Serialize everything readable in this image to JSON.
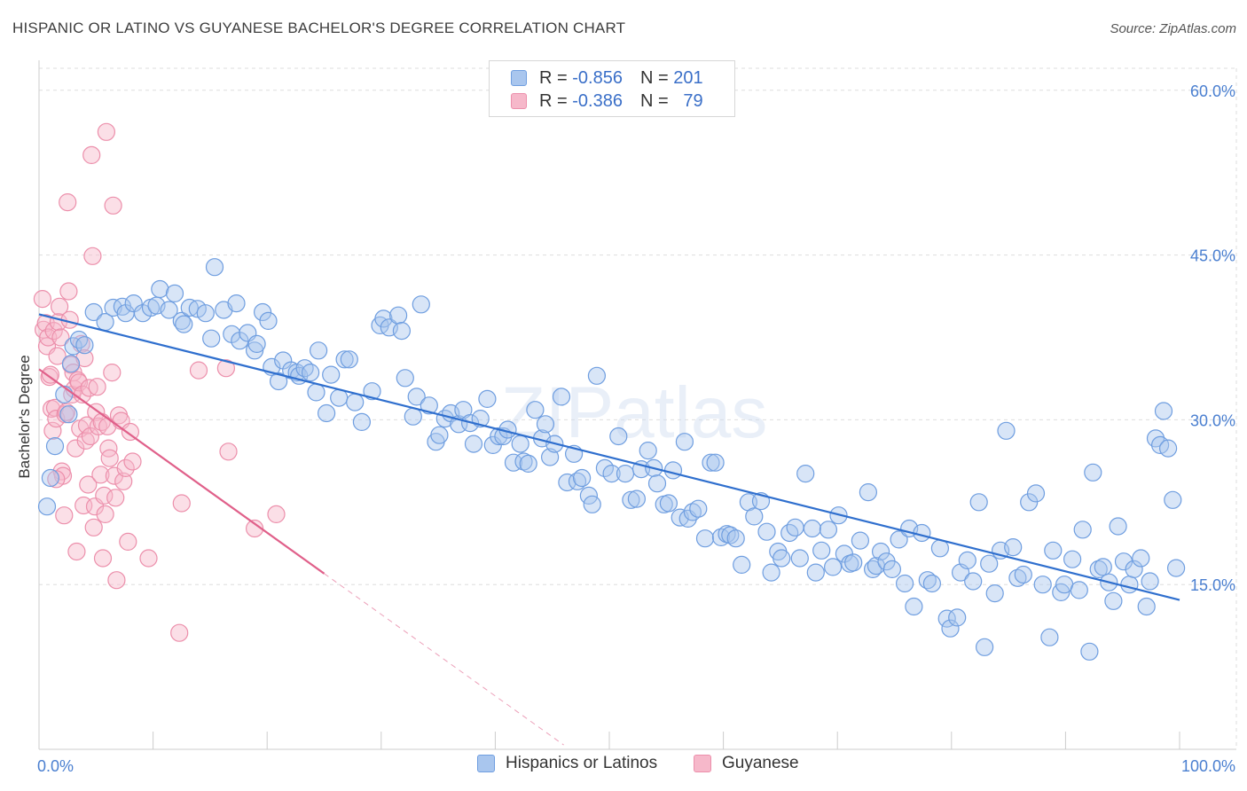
{
  "title": "HISPANIC OR LATINO VS GUYANESE BACHELOR'S DEGREE CORRELATION CHART",
  "source": "Source: ZipAtlas.com",
  "watermark": "ZIPatlas",
  "legend": {
    "rows": [
      {
        "r_label": "R =",
        "r_value": "-0.856",
        "n_label": "N =",
        "n_value": "201"
      },
      {
        "r_label": "R =",
        "r_value": "-0.386",
        "n_label": "N =",
        "n_value": "79"
      }
    ]
  },
  "bottom_legend": {
    "hispanic": "Hispanics or Latinos",
    "guyanese": "Guyanese"
  },
  "colors": {
    "hispanic_fill": "#a9c6ee",
    "hispanic_stroke": "#6f9ee0",
    "hispanic_line": "#2f6fce",
    "guyanese_fill": "#f6b8ca",
    "guyanese_stroke": "#ec8fab",
    "guyanese_line": "#e0608a",
    "grid": "#dddddd",
    "tick": "#4a7fd0"
  },
  "chart_data": {
    "type": "scatter",
    "title": "HISPANIC OR LATINO VS GUYANESE BACHELOR'S DEGREE CORRELATION CHART",
    "xlabel": "",
    "ylabel": "Bachelor's Degree",
    "xlim": [
      0,
      100
    ],
    "ylim": [
      0,
      62
    ],
    "x_tick_labels": [
      {
        "value": 0,
        "label": "0.0%"
      },
      {
        "value": 100,
        "label": "100.0%"
      }
    ],
    "y_tick_labels": [
      {
        "value": 15,
        "label": "15.0%"
      },
      {
        "value": 30,
        "label": "30.0%"
      },
      {
        "value": 45,
        "label": "45.0%"
      },
      {
        "value": 60,
        "label": "60.0%"
      }
    ],
    "x_minor_ticks": [
      0,
      10,
      20,
      30,
      40,
      50,
      60,
      70,
      80,
      90,
      100
    ],
    "series": [
      {
        "name": "Hispanics or Latinos",
        "r": -0.856,
        "n": 201,
        "trend": {
          "x": [
            0,
            100
          ],
          "y": [
            39.6,
            13.6
          ]
        },
        "points": [
          [
            0.7,
            22.1
          ],
          [
            1.0,
            24.7
          ],
          [
            1.4,
            27.6
          ],
          [
            2.2,
            32.3
          ],
          [
            2.6,
            30.5
          ],
          [
            2.8,
            35.1
          ],
          [
            3.0,
            36.7
          ],
          [
            3.5,
            37.3
          ],
          [
            4.0,
            36.8
          ],
          [
            4.8,
            39.8
          ],
          [
            5.8,
            38.9
          ],
          [
            6.5,
            40.2
          ],
          [
            7.3,
            40.3
          ],
          [
            7.6,
            39.7
          ],
          [
            8.3,
            40.6
          ],
          [
            9.1,
            39.7
          ],
          [
            9.8,
            40.2
          ],
          [
            10.3,
            40.4
          ],
          [
            10.6,
            41.9
          ],
          [
            11.4,
            40.0
          ],
          [
            11.9,
            41.5
          ],
          [
            12.5,
            39.0
          ],
          [
            12.7,
            38.7
          ],
          [
            13.2,
            40.2
          ],
          [
            13.9,
            40.1
          ],
          [
            14.6,
            39.7
          ],
          [
            15.1,
            37.4
          ],
          [
            15.4,
            43.9
          ],
          [
            16.2,
            40.0
          ],
          [
            16.9,
            37.8
          ],
          [
            17.3,
            40.6
          ],
          [
            17.6,
            37.2
          ],
          [
            18.3,
            37.9
          ],
          [
            18.9,
            36.3
          ],
          [
            19.1,
            36.9
          ],
          [
            19.6,
            39.8
          ],
          [
            20.1,
            39.0
          ],
          [
            20.4,
            34.8
          ],
          [
            21.0,
            33.5
          ],
          [
            21.4,
            35.4
          ],
          [
            22.1,
            34.5
          ],
          [
            22.6,
            34.3
          ],
          [
            22.8,
            34.0
          ],
          [
            23.3,
            34.7
          ],
          [
            23.8,
            34.3
          ],
          [
            24.5,
            36.3
          ],
          [
            24.3,
            32.5
          ],
          [
            25.2,
            30.6
          ],
          [
            25.6,
            34.1
          ],
          [
            26.3,
            32.0
          ],
          [
            26.8,
            35.5
          ],
          [
            27.2,
            35.5
          ],
          [
            27.7,
            31.6
          ],
          [
            28.3,
            29.8
          ],
          [
            29.2,
            32.6
          ],
          [
            29.9,
            38.6
          ],
          [
            30.2,
            39.2
          ],
          [
            30.7,
            38.4
          ],
          [
            31.5,
            39.5
          ],
          [
            31.8,
            38.1
          ],
          [
            32.1,
            33.8
          ],
          [
            32.8,
            30.3
          ],
          [
            33.1,
            32.1
          ],
          [
            33.5,
            40.5
          ],
          [
            34.2,
            31.3
          ],
          [
            34.8,
            28.0
          ],
          [
            35.1,
            28.6
          ],
          [
            35.6,
            30.1
          ],
          [
            36.1,
            30.6
          ],
          [
            36.8,
            29.6
          ],
          [
            37.2,
            30.9
          ],
          [
            37.8,
            29.7
          ],
          [
            38.1,
            27.8
          ],
          [
            38.7,
            30.1
          ],
          [
            39.3,
            31.9
          ],
          [
            39.8,
            27.7
          ],
          [
            40.3,
            28.5
          ],
          [
            40.7,
            28.5
          ],
          [
            41.1,
            29.1
          ],
          [
            41.6,
            26.1
          ],
          [
            42.2,
            27.8
          ],
          [
            42.5,
            26.2
          ],
          [
            42.9,
            26.0
          ],
          [
            43.5,
            30.9
          ],
          [
            44.1,
            28.3
          ],
          [
            44.4,
            29.6
          ],
          [
            44.8,
            26.6
          ],
          [
            45.2,
            27.8
          ],
          [
            45.8,
            32.1
          ],
          [
            46.3,
            24.3
          ],
          [
            46.9,
            26.9
          ],
          [
            47.2,
            24.4
          ],
          [
            47.6,
            24.7
          ],
          [
            48.2,
            23.1
          ],
          [
            48.5,
            22.3
          ],
          [
            48.9,
            34.0
          ],
          [
            49.6,
            25.6
          ],
          [
            50.2,
            25.1
          ],
          [
            50.8,
            28.5
          ],
          [
            51.4,
            25.1
          ],
          [
            51.9,
            22.7
          ],
          [
            52.4,
            22.8
          ],
          [
            52.8,
            25.5
          ],
          [
            53.4,
            27.2
          ],
          [
            53.9,
            25.6
          ],
          [
            54.2,
            24.2
          ],
          [
            54.8,
            22.3
          ],
          [
            55.2,
            22.4
          ],
          [
            55.6,
            25.4
          ],
          [
            56.2,
            21.1
          ],
          [
            56.6,
            28.0
          ],
          [
            56.9,
            21.0
          ],
          [
            57.3,
            21.6
          ],
          [
            57.8,
            21.9
          ],
          [
            58.4,
            19.2
          ],
          [
            58.9,
            26.1
          ],
          [
            59.3,
            26.1
          ],
          [
            59.8,
            19.3
          ],
          [
            60.3,
            19.6
          ],
          [
            60.6,
            19.5
          ],
          [
            61.1,
            19.2
          ],
          [
            61.6,
            16.8
          ],
          [
            62.2,
            22.5
          ],
          [
            62.7,
            21.2
          ],
          [
            63.3,
            22.6
          ],
          [
            63.8,
            19.8
          ],
          [
            64.2,
            16.1
          ],
          [
            64.8,
            18.0
          ],
          [
            65.1,
            17.4
          ],
          [
            65.8,
            19.7
          ],
          [
            66.3,
            20.2
          ],
          [
            66.7,
            17.4
          ],
          [
            67.2,
            25.1
          ],
          [
            67.8,
            20.1
          ],
          [
            68.1,
            16.1
          ],
          [
            68.6,
            18.1
          ],
          [
            69.2,
            20.0
          ],
          [
            69.6,
            16.6
          ],
          [
            70.1,
            21.3
          ],
          [
            70.6,
            17.8
          ],
          [
            71.1,
            16.9
          ],
          [
            71.4,
            17.0
          ],
          [
            72.0,
            19.0
          ],
          [
            72.7,
            23.4
          ],
          [
            73.1,
            16.4
          ],
          [
            73.4,
            16.7
          ],
          [
            73.8,
            18.0
          ],
          [
            74.3,
            17.1
          ],
          [
            74.8,
            16.4
          ],
          [
            75.4,
            19.1
          ],
          [
            75.9,
            15.1
          ],
          [
            76.3,
            20.1
          ],
          [
            76.7,
            13.0
          ],
          [
            77.4,
            19.7
          ],
          [
            77.9,
            15.4
          ],
          [
            78.3,
            15.1
          ],
          [
            79.0,
            18.3
          ],
          [
            79.6,
            11.9
          ],
          [
            79.9,
            11.0
          ],
          [
            80.5,
            12.0
          ],
          [
            80.8,
            16.1
          ],
          [
            81.4,
            17.2
          ],
          [
            81.9,
            15.3
          ],
          [
            82.4,
            22.5
          ],
          [
            82.9,
            9.3
          ],
          [
            83.3,
            16.9
          ],
          [
            83.8,
            14.2
          ],
          [
            84.3,
            18.1
          ],
          [
            84.8,
            29.0
          ],
          [
            85.4,
            18.4
          ],
          [
            85.8,
            15.6
          ],
          [
            86.3,
            15.9
          ],
          [
            86.8,
            22.5
          ],
          [
            87.4,
            23.3
          ],
          [
            88.0,
            15.0
          ],
          [
            88.6,
            10.2
          ],
          [
            88.9,
            18.1
          ],
          [
            89.6,
            14.3
          ],
          [
            89.9,
            15.0
          ],
          [
            90.6,
            17.3
          ],
          [
            91.2,
            14.5
          ],
          [
            91.5,
            20.0
          ],
          [
            92.1,
            8.9
          ],
          [
            92.4,
            25.2
          ],
          [
            92.9,
            16.4
          ],
          [
            93.3,
            16.6
          ],
          [
            93.8,
            15.2
          ],
          [
            94.2,
            13.5
          ],
          [
            94.6,
            20.3
          ],
          [
            95.1,
            17.1
          ],
          [
            95.6,
            15.0
          ],
          [
            96.0,
            16.4
          ],
          [
            96.6,
            17.4
          ],
          [
            97.1,
            13.0
          ],
          [
            97.4,
            15.3
          ],
          [
            97.9,
            28.3
          ],
          [
            98.3,
            27.7
          ],
          [
            98.6,
            30.8
          ],
          [
            99.0,
            27.4
          ],
          [
            99.4,
            22.7
          ],
          [
            99.7,
            16.5
          ]
        ]
      },
      {
        "name": "Guyanese",
        "r": -0.386,
        "n": 79,
        "trend": {
          "x": [
            0,
            25
          ],
          "y": [
            34.6,
            16.0
          ]
        },
        "trend_dashed": {
          "x": [
            25,
            46
          ],
          "y": [
            16.0,
            0.4
          ]
        },
        "points": [
          [
            0.3,
            41.0
          ],
          [
            0.4,
            38.2
          ],
          [
            0.6,
            38.8
          ],
          [
            0.7,
            36.7
          ],
          [
            0.8,
            37.5
          ],
          [
            0.9,
            33.9
          ],
          [
            1.0,
            34.1
          ],
          [
            1.1,
            31.0
          ],
          [
            1.2,
            29.0
          ],
          [
            1.3,
            38.1
          ],
          [
            1.4,
            31.1
          ],
          [
            1.5,
            30.1
          ],
          [
            1.6,
            35.8
          ],
          [
            1.7,
            38.9
          ],
          [
            1.8,
            40.3
          ],
          [
            1.9,
            37.5
          ],
          [
            2.0,
            25.3
          ],
          [
            2.1,
            24.9
          ],
          [
            2.2,
            21.3
          ],
          [
            2.3,
            30.5
          ],
          [
            2.4,
            30.7
          ],
          [
            2.5,
            49.8
          ],
          [
            2.6,
            41.7
          ],
          [
            2.7,
            39.1
          ],
          [
            2.8,
            35.0
          ],
          [
            2.9,
            32.3
          ],
          [
            3.0,
            34.3
          ],
          [
            3.1,
            32.8
          ],
          [
            3.2,
            27.4
          ],
          [
            3.3,
            18.0
          ],
          [
            3.4,
            33.6
          ],
          [
            3.5,
            33.4
          ],
          [
            3.6,
            29.2
          ],
          [
            3.7,
            36.9
          ],
          [
            3.8,
            32.3
          ],
          [
            3.9,
            22.2
          ],
          [
            4.0,
            35.6
          ],
          [
            4.1,
            28.1
          ],
          [
            4.2,
            29.5
          ],
          [
            4.3,
            24.1
          ],
          [
            4.4,
            32.9
          ],
          [
            4.5,
            28.5
          ],
          [
            4.6,
            54.1
          ],
          [
            4.7,
            44.9
          ],
          [
            4.8,
            20.2
          ],
          [
            4.9,
            22.1
          ],
          [
            5.0,
            30.7
          ],
          [
            5.1,
            33.0
          ],
          [
            5.2,
            29.4
          ],
          [
            5.4,
            25.0
          ],
          [
            5.5,
            29.8
          ],
          [
            5.6,
            17.4
          ],
          [
            5.7,
            23.1
          ],
          [
            5.8,
            21.4
          ],
          [
            5.9,
            56.2
          ],
          [
            6.0,
            29.4
          ],
          [
            6.1,
            27.4
          ],
          [
            6.2,
            26.5
          ],
          [
            6.4,
            34.3
          ],
          [
            6.5,
            49.5
          ],
          [
            6.6,
            24.9
          ],
          [
            6.7,
            22.9
          ],
          [
            6.8,
            15.4
          ],
          [
            7.0,
            30.4
          ],
          [
            7.2,
            29.9
          ],
          [
            7.4,
            24.4
          ],
          [
            7.6,
            25.6
          ],
          [
            7.8,
            18.9
          ],
          [
            8.0,
            28.9
          ],
          [
            8.2,
            26.2
          ],
          [
            9.6,
            17.4
          ],
          [
            12.3,
            10.6
          ],
          [
            12.5,
            22.4
          ],
          [
            14.0,
            34.5
          ],
          [
            16.4,
            34.7
          ],
          [
            16.6,
            27.1
          ],
          [
            18.9,
            20.1
          ],
          [
            20.8,
            21.4
          ],
          [
            1.5,
            24.6
          ]
        ]
      }
    ]
  }
}
